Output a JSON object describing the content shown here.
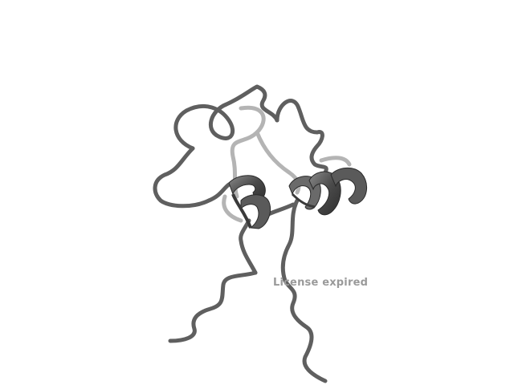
{
  "viewer": {
    "watermark": "License expired",
    "background_color": "#ffffff",
    "structure_style": "cartoon",
    "structure_color": "#5a5a5a"
  }
}
